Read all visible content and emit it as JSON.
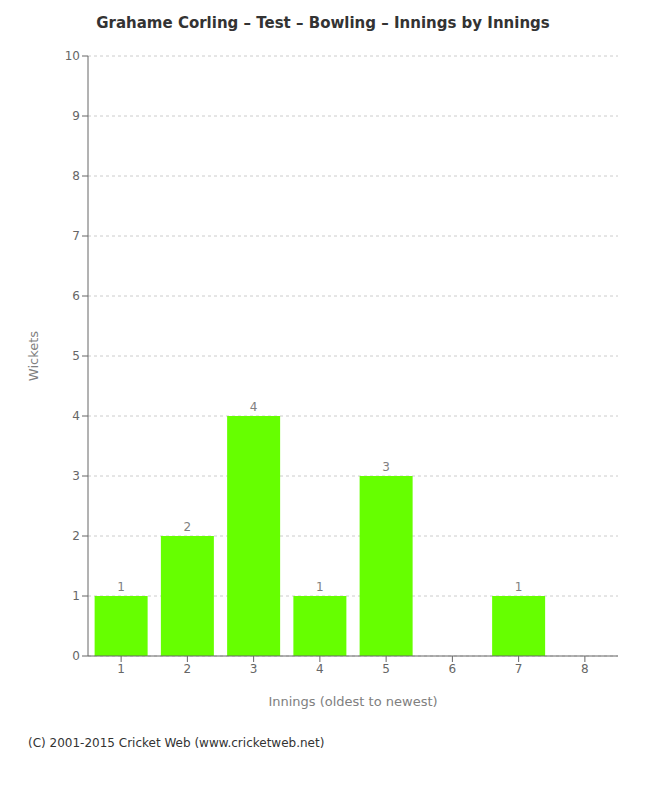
{
  "chart_data": {
    "type": "bar",
    "title": "Grahame Corling – Test – Bowling – Innings by Innings",
    "x_label": "Innings (oldest to newest)",
    "y_label": "Wickets",
    "categories": [
      "1",
      "2",
      "3",
      "4",
      "5",
      "6",
      "7",
      "8"
    ],
    "values": [
      1,
      2,
      4,
      1,
      3,
      0,
      1,
      0
    ],
    "color": "#66ff00",
    "ylim": [
      0,
      10
    ],
    "yticks": [
      0,
      1,
      2,
      3,
      4,
      5,
      6,
      7,
      8,
      9,
      10
    ],
    "grid": true,
    "data_labels": true,
    "annotations": [
      "(C) 2001-2015 Cricket Web (www.cricketweb.net)"
    ]
  }
}
